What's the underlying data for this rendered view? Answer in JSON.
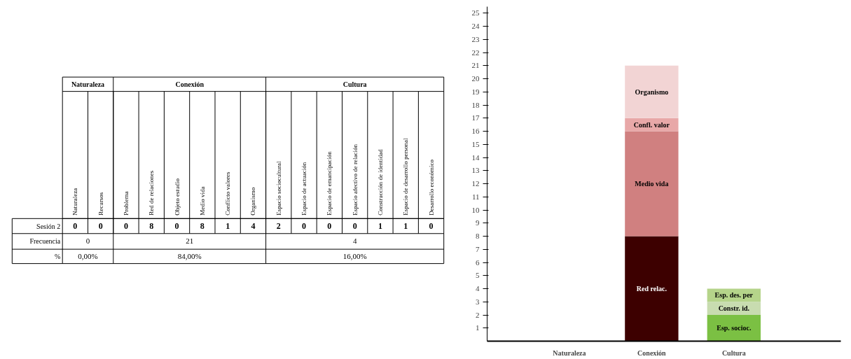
{
  "chart_data": [
    {
      "type": "other",
      "data_labels": true,
      "categories": [
        "Naturaleza",
        "Recursos",
        "Problema",
        "Red de relaciones",
        "Objeto estudio",
        "Medio vida",
        "Conflicto valores",
        "Organismo",
        "Espacio sociocultural",
        "Espacio de actuación",
        "Espacio de emancipación",
        "Espacio afectivo de relación",
        "Construcción de identidad",
        "Espacio de desarrollo personal",
        "Desarrollo económico"
      ],
      "series": [
        {
          "name": "Naturaleza",
          "values": [
            0,
            0,
            null,
            null,
            null,
            null,
            null,
            null,
            null,
            null,
            null,
            null,
            null,
            null,
            null
          ]
        },
        {
          "name": "Conexión",
          "values": [
            null,
            null,
            0,
            8,
            0,
            8,
            1,
            4,
            null,
            null,
            null,
            null,
            null,
            null,
            null
          ]
        },
        {
          "name": "Cultura",
          "values": [
            null,
            null,
            null,
            null,
            null,
            null,
            null,
            null,
            2,
            0,
            0,
            0,
            1,
            1,
            0
          ]
        }
      ],
      "totals": [
        "0",
        "21",
        "4"
      ],
      "annotations": [
        "Sesión 2",
        "Frecuencia",
        "%",
        "0,00%",
        "84,00%",
        "16,00%"
      ]
    },
    {
      "type": "bar",
      "stacked": true,
      "categories": [
        "Naturaleza",
        "Conexión",
        "Cultura"
      ],
      "series": [
        {
          "name": "Red relac.",
          "color": "#3d0000",
          "values": [
            null,
            8,
            null
          ]
        },
        {
          "name": "Medio vida",
          "color": "#d08080",
          "values": [
            null,
            8,
            null
          ]
        },
        {
          "name": "Confl. valor",
          "color": "#e8a8a8",
          "values": [
            null,
            1,
            null
          ]
        },
        {
          "name": "Organismo",
          "color": "#f2d4d4",
          "values": [
            null,
            4,
            null
          ]
        },
        {
          "name": "Esp. socioc.",
          "color": "#7bc043",
          "values": [
            null,
            null,
            2
          ]
        },
        {
          "name": "Constr. id.",
          "color": "#c8dcb0",
          "values": [
            null,
            null,
            1
          ]
        },
        {
          "name": "Esp. des. per",
          "color": "#b5d48a",
          "values": [
            null,
            null,
            1
          ]
        }
      ],
      "ylim": [
        0,
        25.5
      ],
      "yticks": [
        1,
        2,
        3,
        4,
        5,
        6,
        7,
        8,
        9,
        10,
        11,
        12,
        13,
        14,
        15,
        16,
        17,
        18,
        19,
        20,
        21,
        22,
        23,
        24,
        25
      ],
      "grid": false
    }
  ]
}
